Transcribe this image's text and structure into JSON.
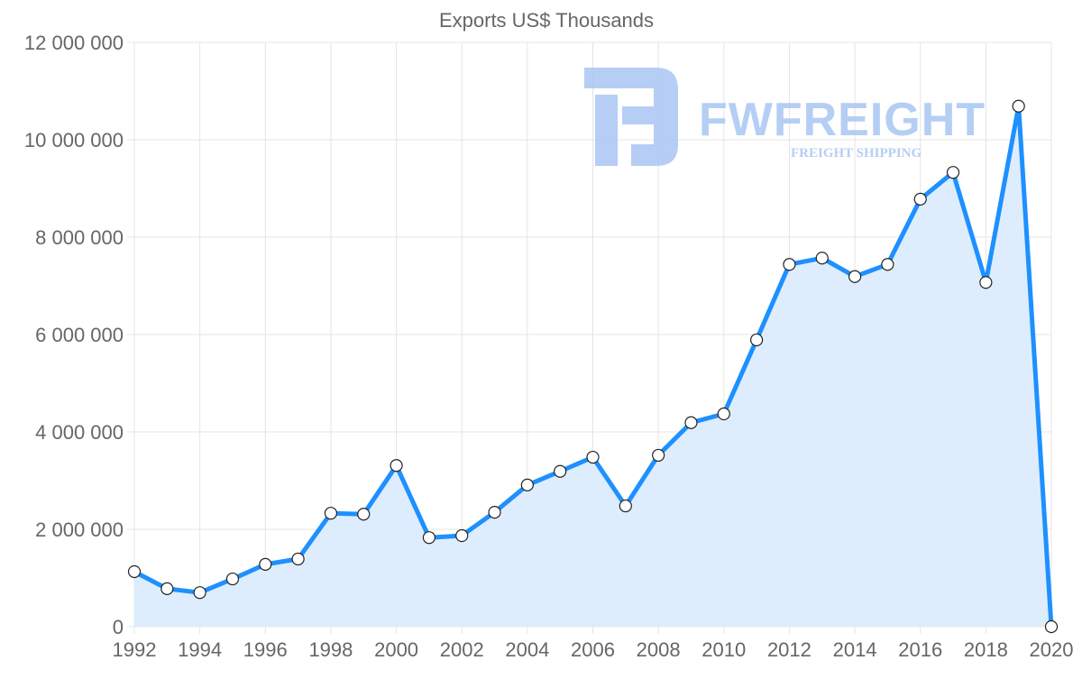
{
  "chart_data": {
    "type": "area",
    "title": "Exports US$ Thousands",
    "xlabel": "",
    "ylabel": "",
    "x": [
      1992,
      1993,
      1994,
      1995,
      1996,
      1997,
      1998,
      1999,
      2000,
      2001,
      2002,
      2003,
      2004,
      2005,
      2006,
      2007,
      2008,
      2009,
      2010,
      2011,
      2012,
      2013,
      2014,
      2015,
      2016,
      2017,
      2018,
      2019,
      2020
    ],
    "series": [
      {
        "name": "Exports US$ Thousands",
        "values": [
          1130000,
          780000,
          700000,
          980000,
          1280000,
          1390000,
          2330000,
          2310000,
          3310000,
          1830000,
          1870000,
          2350000,
          2910000,
          3190000,
          3480000,
          2480000,
          3520000,
          4190000,
          4370000,
          5890000,
          7440000,
          7570000,
          7190000,
          7440000,
          8780000,
          9330000,
          7070000,
          10690000,
          0
        ]
      }
    ],
    "xlim": [
      1992,
      2020
    ],
    "ylim": [
      0,
      12000000
    ],
    "x_ticks": [
      "1992",
      "1994",
      "1996",
      "1998",
      "2000",
      "2002",
      "2004",
      "2006",
      "2008",
      "2010",
      "2012",
      "2014",
      "2016",
      "2018",
      "2020"
    ],
    "y_ticks": [
      "0",
      "2 000 000",
      "4 000 000",
      "6 000 000",
      "8 000 000",
      "10 000 000",
      "12 000 000"
    ],
    "grid": true,
    "legend": "none",
    "colors": {
      "line": "#1e90ff",
      "fill": "#dbecfd",
      "grid": "#e4e4e4",
      "watermark": "#a9c6f3"
    }
  },
  "watermark": {
    "brand": "FWFREIGHT",
    "tagline": "FREIGHT SHIPPING"
  }
}
